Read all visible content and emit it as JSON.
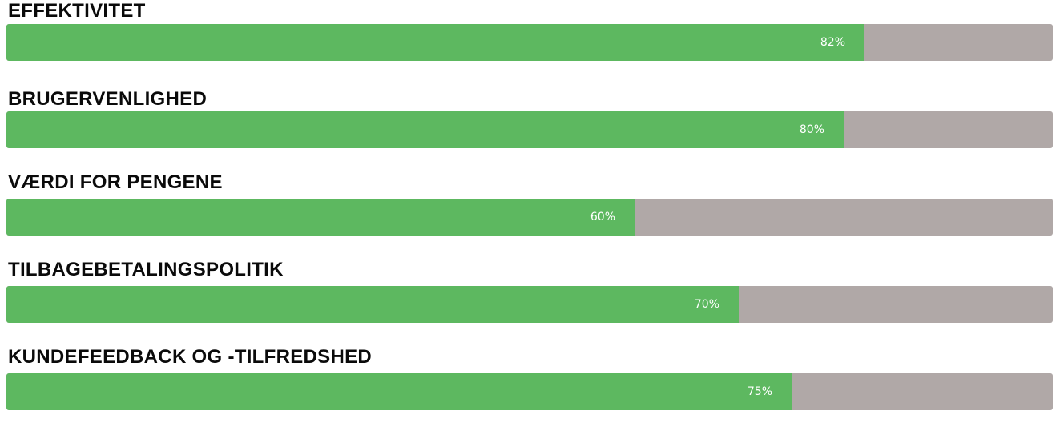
{
  "colors": {
    "fill": "#5db860",
    "track": "#b0a8a7",
    "label": "#0a0a0a",
    "value_text": "#ffffff"
  },
  "chart_data": {
    "type": "bar",
    "orientation": "horizontal",
    "categories": [
      "EFFEKTIVITET",
      "BRUGERVENLIGHED",
      "VÆRDI FOR PENGENE",
      "TILBAGEBETALINGSPOLITIK",
      "KUNDEFEEDBACK OG -TILFREDSHED"
    ],
    "values": [
      82,
      80,
      60,
      70,
      75
    ],
    "value_labels": [
      "82%",
      "80%",
      "60%",
      "70%",
      "75%"
    ],
    "xlim": [
      0,
      100
    ],
    "grid": false
  }
}
